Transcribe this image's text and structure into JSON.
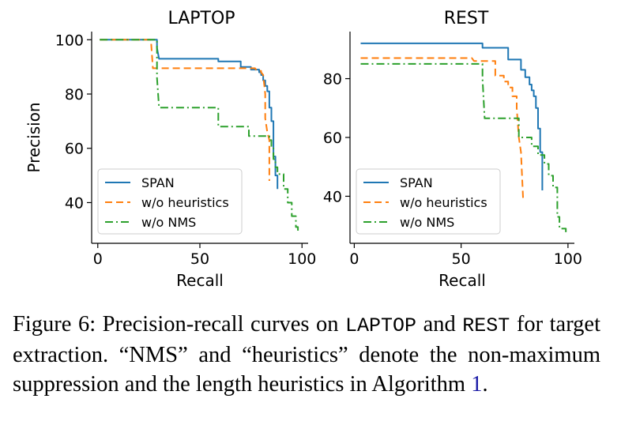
{
  "chart_data": [
    {
      "type": "line",
      "title": "LAPTOP",
      "xlabel": "Recall",
      "ylabel": "Precision",
      "xlim": [
        -3,
        103
      ],
      "ylim": [
        25,
        103
      ],
      "xticks": [
        0,
        50,
        100
      ],
      "yticks": [
        40,
        60,
        80,
        100
      ],
      "legend_position": "lower-left",
      "series": [
        {
          "name": "SPAN",
          "color": "#1f77b4",
          "dash": "solid",
          "points": [
            [
              1,
              100
            ],
            [
              29,
              100
            ],
            [
              29,
              97
            ],
            [
              30,
              93
            ],
            [
              59,
              93
            ],
            [
              59,
              92
            ],
            [
              70,
              92
            ],
            [
              70,
              90
            ],
            [
              75,
              90
            ],
            [
              75,
              89
            ],
            [
              79,
              89
            ],
            [
              79,
              88
            ],
            [
              80,
              88
            ],
            [
              80,
              87
            ],
            [
              81,
              87
            ],
            [
              81,
              85
            ],
            [
              82,
              85
            ],
            [
              82,
              83
            ],
            [
              83,
              83
            ],
            [
              83,
              81
            ],
            [
              84,
              81
            ],
            [
              84,
              75
            ],
            [
              85,
              75
            ],
            [
              85,
              70
            ],
            [
              86,
              70
            ],
            [
              86,
              57
            ],
            [
              87,
              57
            ],
            [
              87,
              50
            ],
            [
              88,
              50
            ],
            [
              88,
              45
            ]
          ]
        },
        {
          "name": "w/o heuristics",
          "color": "#ff7f0e",
          "dash": "dashed",
          "points": [
            [
              1,
              100
            ],
            [
              26,
              100
            ],
            [
              27,
              89.5
            ],
            [
              45,
              89.5
            ],
            [
              60,
              89.5
            ],
            [
              77,
              89.5
            ],
            [
              78,
              88.5
            ],
            [
              80,
              88.5
            ],
            [
              80,
              88
            ],
            [
              81,
              87
            ],
            [
              82,
              80
            ],
            [
              82,
              71
            ],
            [
              83,
              66
            ],
            [
              84,
              63
            ],
            [
              84,
              48
            ]
          ]
        },
        {
          "name": "w/o NMS",
          "color": "#2ca02c",
          "dash": "dashdot",
          "points": [
            [
              1,
              100
            ],
            [
              29,
              100
            ],
            [
              29,
              86
            ],
            [
              30,
              75
            ],
            [
              50,
              75
            ],
            [
              59,
              75
            ],
            [
              59,
              68
            ],
            [
              74,
              68
            ],
            [
              74,
              64.5
            ],
            [
              84,
              64.5
            ],
            [
              84,
              63
            ],
            [
              85,
              63
            ],
            [
              85,
              60
            ],
            [
              86,
              60
            ],
            [
              86,
              56
            ],
            [
              87,
              56
            ],
            [
              87,
              53
            ],
            [
              88,
              53
            ],
            [
              88,
              50.5
            ],
            [
              91,
              50.5
            ],
            [
              91,
              45
            ],
            [
              93,
              45
            ],
            [
              93,
              40
            ],
            [
              95,
              40
            ],
            [
              95,
              35
            ],
            [
              97,
              35
            ],
            [
              97,
              31
            ],
            [
              98,
              31
            ],
            [
              98,
              29
            ]
          ]
        }
      ]
    },
    {
      "type": "line",
      "title": "REST",
      "xlabel": "Recall",
      "ylabel": "",
      "xlim": [
        -2,
        103
      ],
      "ylim": [
        24,
        96
      ],
      "xticks": [
        0,
        50,
        100
      ],
      "yticks": [
        40,
        60,
        80
      ],
      "legend_position": "lower-left",
      "series": [
        {
          "name": "SPAN",
          "color": "#1f77b4",
          "dash": "solid",
          "points": [
            [
              3,
              92
            ],
            [
              60,
              92
            ],
            [
              60,
              90.5
            ],
            [
              72,
              90.5
            ],
            [
              72,
              86.5
            ],
            [
              78,
              86.5
            ],
            [
              78,
              83
            ],
            [
              80,
              83
            ],
            [
              80,
              80.5
            ],
            [
              82,
              80.5
            ],
            [
              82,
              78
            ],
            [
              83,
              78
            ],
            [
              83,
              76
            ],
            [
              84,
              76
            ],
            [
              84,
              74
            ],
            [
              85,
              74
            ],
            [
              85,
              70
            ],
            [
              86,
              70
            ],
            [
              86,
              63
            ],
            [
              87,
              63
            ],
            [
              87,
              55
            ],
            [
              88,
              55
            ],
            [
              88,
              42
            ]
          ]
        },
        {
          "name": "w/o heuristics",
          "color": "#ff7f0e",
          "dash": "dashed",
          "points": [
            [
              3,
              87
            ],
            [
              55,
              87
            ],
            [
              56,
              86
            ],
            [
              66,
              86
            ],
            [
              66,
              81
            ],
            [
              70,
              81
            ],
            [
              70,
              79
            ],
            [
              72,
              79
            ],
            [
              72,
              77
            ],
            [
              74,
              77
            ],
            [
              74,
              74
            ],
            [
              76,
              74
            ],
            [
              76,
              70
            ],
            [
              77,
              60
            ],
            [
              78,
              55
            ],
            [
              79,
              39
            ]
          ]
        },
        {
          "name": "w/o NMS",
          "color": "#2ca02c",
          "dash": "dashdot",
          "points": [
            [
              3,
              85
            ],
            [
              60,
              85
            ],
            [
              60,
              80
            ],
            [
              61,
              66.5
            ],
            [
              67,
              66.5
            ],
            [
              77,
              66.5
            ],
            [
              77,
              60
            ],
            [
              83,
              60
            ],
            [
              83,
              57
            ],
            [
              86,
              57
            ],
            [
              86,
              54
            ],
            [
              89,
              54
            ],
            [
              89,
              51
            ],
            [
              91,
              51
            ],
            [
              91,
              47
            ],
            [
              93,
              47
            ],
            [
              93,
              43
            ],
            [
              95,
              43
            ],
            [
              95,
              33
            ],
            [
              96,
              33
            ],
            [
              96,
              29
            ],
            [
              99,
              29
            ],
            [
              99,
              27
            ]
          ]
        }
      ]
    }
  ],
  "caption": {
    "label": "Figure 6:",
    "t1": "Precision-recall curves on",
    "m1": "LAPTOP",
    "t2": "and",
    "m2": "REST",
    "t3": "for target extraction. “NMS” and “heuristics” denote the non-maximum suppression and the length heuristics in Algorithm",
    "ref": "1",
    "t4": "."
  }
}
